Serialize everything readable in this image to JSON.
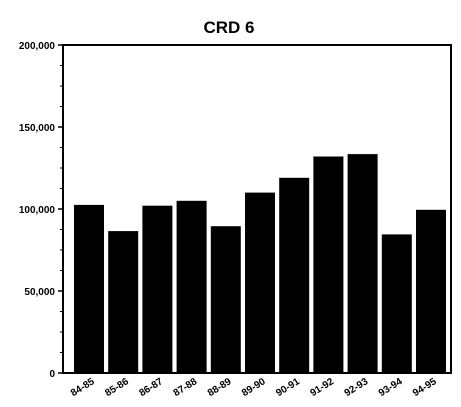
{
  "chart_data": {
    "type": "bar",
    "title": "CRD 6",
    "xlabel": "",
    "ylabel": "",
    "categories": [
      "84-85",
      "85-86",
      "86-87",
      "87-88",
      "88-89",
      "89-90",
      "90-91",
      "91-92",
      "92-93",
      "93-94",
      "94-95"
    ],
    "values": [
      102500,
      86500,
      102000,
      105000,
      89500,
      110000,
      119000,
      132000,
      133500,
      84500,
      99500
    ],
    "ylim": [
      0,
      200000
    ],
    "yticks": [
      0,
      50000,
      100000,
      150000,
      200000
    ],
    "ytick_labels": [
      "0",
      "50,000",
      "100,000",
      "150,000",
      "200,000"
    ],
    "grid": false,
    "bar_color": "#000000"
  }
}
